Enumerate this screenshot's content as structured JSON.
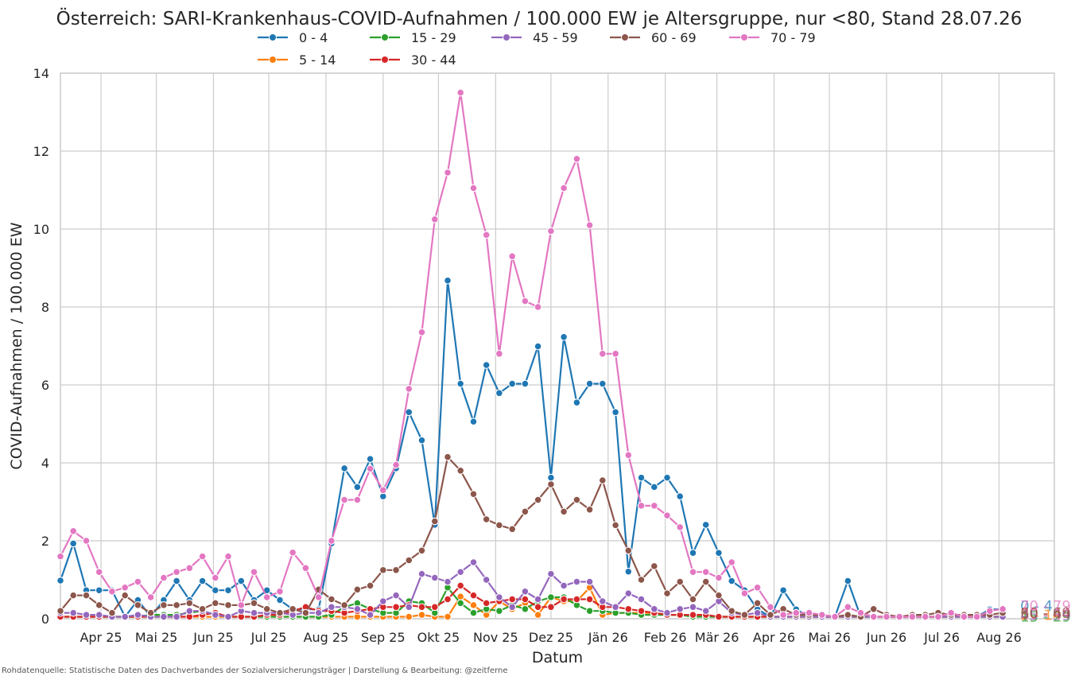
{
  "chart_data": {
    "type": "line",
    "title": "Österreich: SARI-Krankenhaus-COVID-Aufnahmen / 100.000 EW je Altersgruppe, nur <80, Stand 28.07.26",
    "xlabel": "Datum",
    "ylabel": "COVID-Aufnahmen / 100.000 EW",
    "ylim": [
      0,
      14
    ],
    "yticks": [
      0,
      2,
      4,
      6,
      8,
      10,
      12,
      14
    ],
    "xlim": [
      "2025-03-10",
      "2026-08-31"
    ],
    "xticks": [
      {
        "date": "2025-04-01",
        "label": "Apr 25"
      },
      {
        "date": "2025-05-01",
        "label": "Mai 25"
      },
      {
        "date": "2025-06-01",
        "label": "Jun 25"
      },
      {
        "date": "2025-07-01",
        "label": "Jul 25"
      },
      {
        "date": "2025-08-01",
        "label": "Aug 25"
      },
      {
        "date": "2025-09-01",
        "label": "Sep 25"
      },
      {
        "date": "2025-10-01",
        "label": "Okt 25"
      },
      {
        "date": "2025-11-01",
        "label": "Nov 25"
      },
      {
        "date": "2025-12-01",
        "label": "Dez 25"
      },
      {
        "date": "2026-01-01",
        "label": "Jän 26"
      },
      {
        "date": "2026-02-01",
        "label": "Feb 26"
      },
      {
        "date": "2026-03-01",
        "label": "Mär 26"
      },
      {
        "date": "2026-04-01",
        "label": "Apr 26"
      },
      {
        "date": "2026-05-01",
        "label": "Mai 26"
      },
      {
        "date": "2026-06-01",
        "label": "Jun 26"
      },
      {
        "date": "2026-07-01",
        "label": "Jul 26"
      },
      {
        "date": "2026-08-01",
        "label": "Aug 26"
      }
    ],
    "grid": true,
    "legend_position": "top",
    "start_date": "2025-03-10",
    "interval_days": 7,
    "series": [
      {
        "name": "0 - 4",
        "color": "#1f77b4",
        "end_label": "0 - 4",
        "values": [
          0.98,
          1.93,
          0.73,
          0.73,
          0.73,
          0.05,
          0.48,
          0.05,
          0.48,
          0.97,
          0.48,
          0.97,
          0.73,
          0.73,
          0.97,
          0.48,
          0.73,
          0.48,
          0.24,
          0.24,
          0.24,
          1.93,
          3.86,
          3.38,
          4.1,
          3.14,
          3.86,
          5.3,
          4.58,
          2.41,
          8.68,
          6.03,
          5.06,
          6.51,
          5.79,
          6.03,
          6.03,
          6.99,
          3.62,
          7.23,
          5.55,
          6.03,
          6.03,
          5.3,
          1.21,
          3.62,
          3.38,
          3.62,
          3.14,
          1.69,
          2.41,
          1.69,
          0.97,
          0.73,
          0.24,
          0.05,
          0.73,
          0.24,
          0.05,
          0.05,
          0.05,
          0.97,
          0.05,
          0.05,
          0.05,
          0.05,
          0.05,
          0.05,
          0.05,
          0.05,
          0.05,
          0.05,
          0.24,
          0.24
        ]
      },
      {
        "name": "5 - 14",
        "color": "#ff7f0e",
        "end_label": "5 - 14",
        "values": [
          0.05,
          0.05,
          0.05,
          0.05,
          0.05,
          0.05,
          0.05,
          0.05,
          0.05,
          0.05,
          0.05,
          0.05,
          0.05,
          0.05,
          0.05,
          0.05,
          0.05,
          0.05,
          0.05,
          0.05,
          0.05,
          0.05,
          0.05,
          0.05,
          0.05,
          0.05,
          0.05,
          0.05,
          0.1,
          0.05,
          0.05,
          0.57,
          0.35,
          0.1,
          0.45,
          0.25,
          0.4,
          0.1,
          0.55,
          0.45,
          0.45,
          0.8,
          0.1,
          0.15,
          0.15,
          0.15,
          0.15,
          0.1,
          0.1,
          0.1,
          0.05,
          0.05,
          0.05,
          0.05,
          0.05,
          0.05,
          0.05,
          0.05,
          0.05,
          0.05,
          0.05,
          0.05,
          0.05,
          0.05,
          0.05,
          0.05,
          0.05,
          0.05,
          0.05,
          0.05,
          0.05,
          0.05,
          0.05,
          0.05
        ]
      },
      {
        "name": "15 - 29",
        "color": "#2ca02c",
        "end_label": "15 - 29",
        "values": [
          0.05,
          0.05,
          0.05,
          0.05,
          0.05,
          0.05,
          0.05,
          0.1,
          0.1,
          0.1,
          0.15,
          0.2,
          0.1,
          0.05,
          0.05,
          0.05,
          0.05,
          0.05,
          0.05,
          0.05,
          0.05,
          0.1,
          0.3,
          0.4,
          0.25,
          0.15,
          0.15,
          0.45,
          0.4,
          0.15,
          0.8,
          0.4,
          0.15,
          0.25,
          0.2,
          0.35,
          0.25,
          0.45,
          0.55,
          0.55,
          0.35,
          0.2,
          0.2,
          0.15,
          0.15,
          0.1,
          0.1,
          0.1,
          0.1,
          0.05,
          0.05,
          0.05,
          0.05,
          0.05,
          0.05,
          0.05,
          0.05,
          0.05,
          0.05,
          0.05,
          0.05,
          0.05,
          0.05,
          0.05,
          0.05,
          0.05,
          0.05,
          0.05,
          0.05,
          0.05,
          0.05,
          0.05,
          0.05,
          0.05
        ]
      },
      {
        "name": "30 - 44",
        "color": "#d62728",
        "end_label": "30 - 44",
        "values": [
          0.05,
          0.05,
          0.05,
          0.05,
          0.05,
          0.05,
          0.05,
          0.05,
          0.05,
          0.05,
          0.05,
          0.1,
          0.15,
          0.05,
          0.05,
          0.05,
          0.1,
          0.1,
          0.2,
          0.3,
          0.2,
          0.2,
          0.15,
          0.2,
          0.25,
          0.3,
          0.3,
          0.35,
          0.3,
          0.3,
          0.5,
          0.85,
          0.6,
          0.4,
          0.45,
          0.5,
          0.5,
          0.3,
          0.3,
          0.5,
          0.5,
          0.5,
          0.3,
          0.3,
          0.25,
          0.2,
          0.15,
          0.1,
          0.1,
          0.1,
          0.1,
          0.05,
          0.05,
          0.05,
          0.05,
          0.05,
          0.05,
          0.05,
          0.05,
          0.05,
          0.05,
          0.05,
          0.05,
          0.05,
          0.05,
          0.05,
          0.05,
          0.05,
          0.05,
          0.05,
          0.05,
          0.05,
          0.05,
          0.05
        ]
      },
      {
        "name": "45 - 59",
        "color": "#9467bd",
        "end_label": "45 - 59",
        "values": [
          0.15,
          0.15,
          0.1,
          0.1,
          0.05,
          0.05,
          0.1,
          0.05,
          0.05,
          0.05,
          0.2,
          0.2,
          0.1,
          0.05,
          0.2,
          0.15,
          0.15,
          0.15,
          0.1,
          0.15,
          0.15,
          0.3,
          0.3,
          0.25,
          0.1,
          0.45,
          0.6,
          0.3,
          1.15,
          1.05,
          0.95,
          1.2,
          1.45,
          1.0,
          0.55,
          0.3,
          0.7,
          0.5,
          1.15,
          0.85,
          0.95,
          0.95,
          0.45,
          0.3,
          0.65,
          0.5,
          0.25,
          0.15,
          0.25,
          0.3,
          0.2,
          0.45,
          0.15,
          0.1,
          0.15,
          0.05,
          0.05,
          0.05,
          0.05,
          0.05,
          0.05,
          0.05,
          0.05,
          0.05,
          0.05,
          0.05,
          0.05,
          0.05,
          0.05,
          0.05,
          0.05,
          0.05,
          0.05,
          0.05
        ]
      },
      {
        "name": "60 - 69",
        "color": "#8c564b",
        "end_label": "60 - 69",
        "values": [
          0.2,
          0.6,
          0.6,
          0.35,
          0.15,
          0.6,
          0.35,
          0.15,
          0.35,
          0.35,
          0.4,
          0.25,
          0.4,
          0.35,
          0.35,
          0.4,
          0.25,
          0.15,
          0.25,
          0.15,
          0.75,
          0.5,
          0.35,
          0.75,
          0.85,
          1.25,
          1.25,
          1.5,
          1.75,
          2.5,
          4.15,
          3.8,
          3.2,
          2.55,
          2.4,
          2.3,
          2.75,
          3.05,
          3.45,
          2.75,
          3.05,
          2.8,
          3.55,
          2.4,
          1.75,
          1.0,
          1.35,
          0.65,
          0.95,
          0.5,
          0.95,
          0.6,
          0.2,
          0.1,
          0.4,
          0.1,
          0.25,
          0.1,
          0.1,
          0.1,
          0.05,
          0.1,
          0.05,
          0.25,
          0.1,
          0.05,
          0.1,
          0.1,
          0.15,
          0.1,
          0.1,
          0.1,
          0.1,
          0.15
        ]
      },
      {
        "name": "70 - 79",
        "color": "#e377c2",
        "end_label": "70 - 79",
        "values": [
          1.6,
          2.25,
          2.0,
          1.2,
          0.7,
          0.8,
          0.95,
          0.55,
          1.05,
          1.2,
          1.3,
          1.6,
          1.05,
          1.6,
          0.35,
          1.2,
          0.55,
          0.7,
          1.7,
          1.3,
          0.55,
          2.0,
          3.05,
          3.05,
          3.85,
          3.3,
          3.95,
          5.9,
          7.35,
          10.25,
          11.45,
          13.5,
          11.05,
          9.85,
          6.8,
          9.3,
          8.15,
          8.0,
          9.95,
          11.05,
          11.8,
          10.1,
          6.8,
          6.8,
          4.2,
          2.9,
          2.9,
          2.65,
          2.35,
          1.2,
          1.2,
          1.05,
          1.45,
          0.65,
          0.8,
          0.3,
          0.1,
          0.15,
          0.15,
          0.1,
          0.05,
          0.3,
          0.15,
          0.05,
          0.05,
          0.05,
          0.05,
          0.05,
          0.05,
          0.15,
          0.05,
          0.05,
          0.2,
          0.25
        ]
      }
    ]
  },
  "legend": {
    "items": [
      "0 - 4",
      "5 - 14",
      "15 - 29",
      "30 - 44",
      "45 - 59",
      "60 - 69",
      "70 - 79"
    ]
  },
  "footer": {
    "source": "Rohdatenquelle: Statistische Daten des Dachverbandes der Sozialversicherungsträger | Darstellung & Bearbeitung: @zeitferne"
  }
}
